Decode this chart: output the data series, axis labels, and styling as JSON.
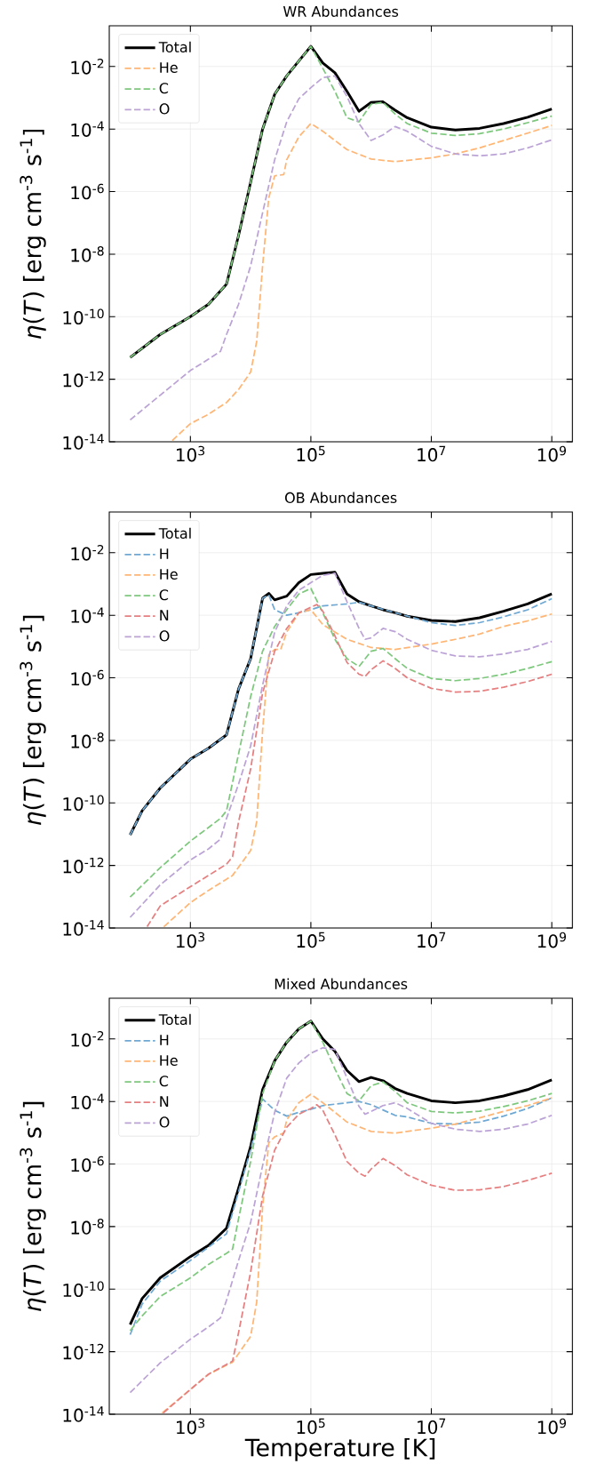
{
  "chart_data": [
    {
      "type": "line",
      "title": "WR Abundances",
      "ylabel": "*η*(*T*) [erg cm$^{-3}$ s$^{-1}$]",
      "log": "xy",
      "xlim": [
        45,
        2200000000.0
      ],
      "ylim": [
        1e-14,
        0.2
      ],
      "xticks": [
        {
          "value": 1000.0,
          "label": "10$^{3}$"
        },
        {
          "value": 100000.0,
          "label": "10$^{5}$"
        },
        {
          "value": 10000000.0,
          "label": "10$^{7}$"
        },
        {
          "value": 1000000000.0,
          "label": "10$^{9}$"
        }
      ],
      "yticks": [
        {
          "value": 1e-14,
          "label": "10$^{-14}$"
        },
        {
          "value": 1e-12,
          "label": "10$^{-12}$"
        },
        {
          "value": 1e-10,
          "label": "10$^{-10}$"
        },
        {
          "value": 1e-08,
          "label": "10$^{-8}$"
        },
        {
          "value": 1e-06,
          "label": "10$^{-6}$"
        },
        {
          "value": 0.0001,
          "label": "10$^{-4}$"
        },
        {
          "value": 0.01,
          "label": "10$^{-2}$"
        }
      ],
      "grid": true,
      "legend": "top left",
      "marker": "none",
      "series": [
        {
          "name": "Total",
          "color": "#000000",
          "line_style": "solid",
          "x": [
            100,
            316,
            1000,
            2000,
            3980,
            6310,
            10000.0,
            15800,
            25100,
            39800,
            63100,
            100000.0,
            158000,
            251000,
            398000,
            631000,
            1000000.0,
            1580000.0,
            2510000.0,
            3980000.0,
            10000000.0,
            25100000.0,
            63100000.0,
            158000000.0,
            398000000.0,
            1000000000.0
          ],
          "values": [
            5e-12,
            2.7e-11,
            1e-10,
            2.5e-10,
            1.1e-09,
            4e-08,
            2e-06,
            0.0001,
            0.0013,
            0.005,
            0.015,
            0.044,
            0.013,
            0.0063,
            0.0016,
            0.00037,
            0.00071,
            0.00074,
            0.0004,
            0.00023,
            0.000115,
            9.3e-05,
            0.000105,
            0.00015,
            0.00024,
            0.00044
          ]
        },
        {
          "name": "He",
          "color": "#ffb574",
          "line_style": "dashed",
          "x": [
            500,
            1000,
            2000,
            3980,
            6310,
            10000.0,
            12600,
            15800,
            20000,
            25100,
            35500,
            39800,
            63100,
            100000.0,
            158000,
            251000,
            398000,
            1000000.0,
            2510000.0,
            10000000.0,
            25100000.0,
            63100000.0,
            158000000.0,
            398000000.0,
            1000000000.0
          ],
          "values": [
            1.1e-14,
            3.8e-14,
            7.6e-14,
            1.8e-13,
            4.7e-13,
            1.7e-12,
            1.6e-11,
            4.2e-09,
            6.3e-07,
            3.2e-06,
            3.5e-06,
            1.05e-05,
            5.6e-05,
            0.00015,
            8.5e-05,
            4.3e-05,
            2.2e-05,
            1.1e-05,
            9.1e-06,
            1.2e-05,
            1.6e-05,
            2.5e-05,
            4.3e-05,
            7.4e-05,
            0.00013
          ]
        },
        {
          "name": "C",
          "color": "#7dc87d",
          "line_style": "dashed",
          "x": [
            100,
            316,
            1000,
            2000,
            3980,
            6310,
            10000.0,
            15800,
            25100,
            39800,
            63100,
            100000.0,
            158000,
            251000,
            398000,
            631000,
            1000000.0,
            1580000.0,
            2510000.0,
            3980000.0,
            10000000.0,
            25100000.0,
            63100000.0,
            158000000.0,
            398000000.0,
            1000000000.0
          ],
          "values": [
            5e-12,
            2.7e-11,
            1e-10,
            2.5e-10,
            1.1e-09,
            4e-08,
            2e-06,
            0.0001,
            0.0013,
            0.005,
            0.015,
            0.044,
            0.0087,
            0.0016,
            0.00023,
            0.00017,
            0.00062,
            0.00071,
            0.0003,
            0.00015,
            7.4e-05,
            6.2e-05,
            7.1e-05,
            0.0001,
            0.00016,
            0.00026
          ]
        },
        {
          "name": "O",
          "color": "#bba3d6",
          "line_style": "dashed",
          "x": [
            100,
            316,
            1000,
            2000,
            3160,
            3980,
            6310,
            10000.0,
            15800,
            25100,
            39800,
            63100,
            100000.0,
            158000,
            251000,
            398000,
            631000,
            1000000.0,
            1580000.0,
            2510000.0,
            3980000.0,
            10000000.0,
            25100000.0,
            63100000.0,
            158000000.0,
            398000000.0,
            1000000000.0
          ],
          "values": [
            5e-14,
            3.1e-13,
            1.9e-12,
            4.4e-12,
            7.8e-12,
            2.7e-11,
            2.5e-10,
            4.2e-09,
            2.1e-07,
            1.05e-05,
            0.00017,
            0.00093,
            0.0021,
            0.0044,
            0.005,
            0.0011,
            0.00015,
            4.3e-05,
            6.5e-05,
            0.00012,
            8.5e-05,
            2.8e-05,
            1.6e-05,
            1.4e-05,
            1.6e-05,
            2.5e-05,
            4.5e-05
          ]
        }
      ]
    },
    {
      "type": "line",
      "title": "OB Abundances",
      "ylabel": "*η*(*T*) [erg cm$^{-3}$ s$^{-1}$]",
      "log": "xy",
      "xlim": [
        45,
        2200000000.0
      ],
      "ylim": [
        1e-14,
        0.2
      ],
      "xticks": [
        {
          "value": 1000.0,
          "label": "10$^{3}$"
        },
        {
          "value": 100000.0,
          "label": "10$^{5}$"
        },
        {
          "value": 10000000.0,
          "label": "10$^{7}$"
        },
        {
          "value": 1000000000.0,
          "label": "10$^{9}$"
        }
      ],
      "yticks": [
        {
          "value": 1e-14,
          "label": "10$^{-14}$"
        },
        {
          "value": 1e-12,
          "label": "10$^{-12}$"
        },
        {
          "value": 1e-10,
          "label": "10$^{-10}$"
        },
        {
          "value": 1e-08,
          "label": "10$^{-8}$"
        },
        {
          "value": 1e-06,
          "label": "10$^{-6}$"
        },
        {
          "value": 0.0001,
          "label": "10$^{-4}$"
        },
        {
          "value": 0.01,
          "label": "10$^{-2}$"
        }
      ],
      "grid": true,
      "legend": "top left",
      "marker": "none",
      "series": [
        {
          "name": "Total",
          "color": "#000000",
          "line_style": "solid",
          "x": [
            100,
            158,
            316,
            1000,
            2000,
            3980,
            6310,
            10000.0,
            15800,
            20000,
            25100,
            39800,
            63100,
            100000.0,
            158000,
            251000,
            398000,
            631000,
            1000000.0,
            1580000.0,
            2510000.0,
            3980000.0,
            10000000.0,
            25100000.0,
            63100000.0,
            158000000.0,
            398000000.0,
            1000000000.0
          ],
          "values": [
            9.5e-12,
            5.6e-11,
            3e-10,
            2.5e-09,
            5.6e-09,
            1.5e-08,
            4.4e-07,
            4.1e-06,
            0.00035,
            0.0005,
            0.00031,
            0.00041,
            0.0011,
            0.002,
            0.0022,
            0.0024,
            0.00048,
            0.00027,
            0.0002,
            0.00015,
            0.00012,
            9.3e-05,
            6.8e-05,
            6.3e-05,
            8.3e-05,
            0.000135,
            0.00023,
            0.00048
          ]
        },
        {
          "name": "H",
          "color": "#6fa8d2",
          "line_style": "dashed",
          "x": [
            100,
            158,
            316,
            1000,
            2000,
            3980,
            6310,
            10000.0,
            15800,
            20000,
            25100,
            39800,
            63100,
            100000.0,
            158000,
            398000,
            631000,
            1000000.0,
            2510000.0,
            10000000.0,
            25100000.0,
            63100000.0,
            158000000.0,
            398000000.0,
            1000000000.0
          ],
          "values": [
            9.5e-12,
            5.6e-11,
            3e-10,
            2.5e-09,
            5.6e-09,
            1.5e-08,
            4.4e-07,
            4.1e-06,
            0.00035,
            0.00045,
            0.00015,
            0.0001,
            0.00012,
            0.00015,
            0.0002,
            0.00023,
            0.00026,
            0.0002,
            0.00012,
            5.8e-05,
            4.7e-05,
            5.8e-05,
            8.9e-05,
            0.00015,
            0.00034
          ]
        },
        {
          "name": "He",
          "color": "#ffb574",
          "line_style": "dashed",
          "x": [
            363,
            1000,
            2000,
            5010,
            10000.0,
            12600,
            15800,
            20000,
            25100,
            31600,
            39800,
            63100,
            100000.0,
            158000,
            251000,
            398000,
            1000000.0,
            2510000.0,
            10000000.0,
            25100000.0,
            63100000.0,
            158000000.0,
            398000000.0,
            1000000000.0
          ],
          "values": [
            1.1e-14,
            6.5e-14,
            1.6e-13,
            4.8e-13,
            3e-12,
            2.5e-11,
            2e-08,
            5.4e-06,
            8.1e-06,
            8.1e-06,
            2.9e-05,
            0.00012,
            0.00015,
            5e-05,
            2.9e-05,
            1.7e-05,
            9.3e-06,
            8.1e-06,
            1.2e-05,
            1.7e-05,
            2.5e-05,
            4.4e-05,
            6.6e-05,
            0.00011
          ]
        },
        {
          "name": "C",
          "color": "#7dc87d",
          "line_style": "dashed",
          "x": [
            100,
            316,
            1000,
            3160,
            3980,
            6310,
            10000.0,
            15800,
            25100,
            39800,
            63100,
            100000.0,
            158000,
            251000,
            398000,
            631000,
            1000000.0,
            1580000.0,
            2510000.0,
            3980000.0,
            10000000.0,
            25100000.0,
            63100000.0,
            158000000.0,
            398000000.0,
            1000000000.0
          ],
          "values": [
            9.8e-14,
            8.5e-13,
            6e-12,
            3.2e-11,
            5.6e-11,
            3.7e-09,
            2.5e-07,
            7.1e-06,
            4.4e-05,
            0.00015,
            0.00048,
            0.00072,
            0.00012,
            1.7e-05,
            4.1e-06,
            2.3e-06,
            7.1e-06,
            8.7e-06,
            4.1e-06,
            2e-06,
            9.5e-07,
            8.1e-07,
            9.5e-07,
            1.3e-06,
            2e-06,
            3.3e-06
          ]
        },
        {
          "name": "N",
          "color": "#e57f80",
          "line_style": "dashed",
          "x": [
            191,
            316,
            1000,
            2000,
            3980,
            5010,
            6310,
            10000.0,
            15800,
            25100,
            39800,
            63100,
            100000.0,
            126000,
            158000,
            251000,
            398000,
            631000,
            794000,
            1000000.0,
            1580000.0,
            2510000.0,
            3980000.0,
            10000000.0,
            25100000.0,
            63100000.0,
            158000000.0,
            398000000.0,
            1000000000.0
          ],
          "values": [
            1.1e-14,
            5.1e-14,
            2.1e-13,
            4.8e-13,
            1.1e-12,
            1.9e-12,
            2.5e-11,
            1.2e-09,
            3.3e-07,
            7.1e-06,
            3.8e-05,
            0.00012,
            0.00018,
            0.00022,
            0.000135,
            2.2e-05,
            3.1e-06,
            1.3e-06,
            1.1e-06,
            1.8e-06,
            3.5e-06,
            2e-06,
            1e-06,
            4.6e-07,
            3.5e-07,
            3.7e-07,
            5e-07,
            7.6e-07,
            1.3e-06
          ]
        },
        {
          "name": "O",
          "color": "#bba3d6",
          "line_style": "dashed",
          "x": [
            100,
            316,
            1000,
            2000,
            3160,
            3980,
            6310,
            10000.0,
            15800,
            25100,
            39800,
            63100,
            100000.0,
            158000,
            251000,
            398000,
            631000,
            794000,
            1000000.0,
            1580000.0,
            2510000.0,
            3980000.0,
            10000000.0,
            25100000.0,
            63100000.0,
            158000000.0,
            398000000.0,
            1000000000.0
          ],
          "values": [
            2.2e-14,
            2.4e-13,
            1.5e-12,
            3.4e-12,
            6.9e-12,
            3.2e-11,
            4e-10,
            6.6e-09,
            5.8e-07,
            2.9e-05,
            0.0002,
            0.00063,
            0.0011,
            0.0019,
            0.0022,
            0.00027,
            3.8e-05,
            1.7e-05,
            1.9e-05,
            3.8e-05,
            3e-05,
            1.7e-05,
            7.6e-06,
            5e-06,
            4.7e-06,
            5.8e-06,
            8.1e-06,
            1.45e-05
          ]
        }
      ]
    },
    {
      "type": "line",
      "title": "Mixed Abundances",
      "xlabel": "Temperature [K]",
      "ylabel": "*η*(*T*) [erg cm$^{-3}$ s$^{-1}$]",
      "log": "xy",
      "xlim": [
        45,
        2200000000.0
      ],
      "ylim": [
        1e-14,
        0.2
      ],
      "xticks": [
        {
          "value": 1000.0,
          "label": "10$^{3}$"
        },
        {
          "value": 100000.0,
          "label": "10$^{5}$"
        },
        {
          "value": 10000000.0,
          "label": "10$^{7}$"
        },
        {
          "value": 1000000000.0,
          "label": "10$^{9}$"
        }
      ],
      "yticks": [
        {
          "value": 1e-14,
          "label": "10$^{-14}$"
        },
        {
          "value": 1e-12,
          "label": "10$^{-12}$"
        },
        {
          "value": 1e-10,
          "label": "10$^{-10}$"
        },
        {
          "value": 1e-08,
          "label": "10$^{-8}$"
        },
        {
          "value": 1e-06,
          "label": "10$^{-6}$"
        },
        {
          "value": 0.0001,
          "label": "10$^{-4}$"
        },
        {
          "value": 0.01,
          "label": "10$^{-2}$"
        }
      ],
      "grid": true,
      "legend": "top left",
      "marker": "none",
      "series": [
        {
          "name": "Total",
          "color": "#000000",
          "line_style": "solid",
          "x": [
            100,
            158,
            316,
            1000,
            2000,
            3980,
            6310,
            10000.0,
            15800,
            25100,
            39800,
            63100,
            100000.0,
            158000,
            251000,
            398000,
            631000,
            1000000.0,
            1580000.0,
            2510000.0,
            3980000.0,
            10000000.0,
            25100000.0,
            63100000.0,
            158000000.0,
            398000000.0,
            1000000000.0
          ],
          "values": [
            7.4e-12,
            5e-11,
            2.3e-10,
            1.1e-09,
            2.5e-09,
            8.9e-09,
            1.7e-07,
            3.6e-06,
            0.00024,
            0.002,
            0.0079,
            0.021,
            0.037,
            0.01,
            0.004,
            0.00098,
            0.00043,
            0.00059,
            0.00046,
            0.00026,
            0.00018,
            0.000105,
            9.1e-05,
            0.000105,
            0.00015,
            0.00024,
            0.00049
          ]
        },
        {
          "name": "H",
          "color": "#6fa8d2",
          "line_style": "dashed",
          "x": [
            100,
            158,
            316,
            1000,
            2000,
            3980,
            6310,
            10000.0,
            15800,
            20000,
            25100,
            39800,
            63100,
            100000.0,
            158000,
            398000,
            631000,
            1000000.0,
            2510000.0,
            3980000.0,
            10000000.0,
            25100000.0,
            63100000.0,
            158000000.0,
            398000000.0,
            1000000000.0
          ],
          "values": [
            3.5e-12,
            3.3e-11,
            1.8e-10,
            8.3e-10,
            2.2e-09,
            5.9e-09,
            1.3e-07,
            2.8e-06,
            0.00012,
            7.9e-05,
            5.2e-05,
            3.4e-05,
            4.5e-05,
            5.6e-05,
            7.4e-05,
            9.1e-05,
            0.0001,
            7.9e-05,
            3.6e-05,
            3.2e-05,
            2e-05,
            1.9e-05,
            2.2e-05,
            3.4e-05,
            6e-05,
            0.00013
          ]
        },
        {
          "name": "He",
          "color": "#ffb574",
          "line_style": "dashed",
          "x": [
            339,
            1000,
            2000,
            5010,
            10000.0,
            12600,
            15800,
            20000,
            25100,
            35500,
            39800,
            63100,
            100000.0,
            158000,
            251000,
            398000,
            1000000.0,
            2510000.0,
            10000000.0,
            25100000.0,
            63100000.0,
            158000000.0,
            398000000.0,
            1000000000.0
          ],
          "values": [
            1.1e-14,
            6.2e-14,
            1.9e-13,
            4.6e-13,
            3.1e-12,
            3.8e-11,
            4.2e-08,
            4.8e-06,
            7.4e-06,
            9.8e-06,
            2.6e-05,
            9.1e-05,
            0.00017,
            9.1e-05,
            4.5e-05,
            2.2e-05,
            1.1e-05,
            9.8e-06,
            1.4e-05,
            1.9e-05,
            3e-05,
            4.8e-05,
            7.4e-05,
            0.00013
          ]
        },
        {
          "name": "C",
          "color": "#7dc87d",
          "line_style": "dashed",
          "x": [
            100,
            158,
            316,
            1000,
            2000,
            3980,
            5010,
            6310,
            10000.0,
            15800,
            25100,
            39800,
            63100,
            100000.0,
            158000,
            251000,
            398000,
            631000,
            1000000.0,
            1580000.0,
            2510000.0,
            3980000.0,
            10000000.0,
            25100000.0,
            63100000.0,
            158000000.0,
            398000000.0,
            1000000000.0
          ],
          "values": [
            4.7e-12,
            1.4e-11,
            5.8e-11,
            2.3e-10,
            6.2e-10,
            1.4e-09,
            1.9e-09,
            1.8e-08,
            1.2e-06,
            0.00018,
            0.002,
            0.0079,
            0.021,
            0.037,
            0.0079,
            0.0011,
            0.00018,
            0.000105,
            0.00032,
            0.00042,
            0.00021,
            9.1e-05,
            4.8e-05,
            4.3e-05,
            4.9e-05,
            6.9e-05,
            0.000105,
            0.00018
          ]
        },
        {
          "name": "N",
          "color": "#e57f80",
          "line_style": "dashed",
          "x": [
            355,
            1000,
            2000,
            5010,
            6310,
            10000.0,
            15800,
            25100,
            39800,
            63100,
            100000.0,
            126000,
            158000,
            251000,
            398000,
            631000,
            794000,
            1000000.0,
            1580000.0,
            2510000.0,
            3980000.0,
            10000000.0,
            25100000.0,
            63100000.0,
            158000000.0,
            398000000.0,
            1000000000.0
          ],
          "values": [
            1.1e-14,
            6.2e-14,
            1.9e-13,
            5e-13,
            4.1e-12,
            3.5e-10,
            9.5e-08,
            2.8e-06,
            1.5e-05,
            3.9e-05,
            6e-05,
            7.9e-05,
            5.2e-05,
            8.5e-06,
            1.2e-06,
            5.1e-07,
            4.1e-07,
            6.9e-07,
            1.5e-06,
            8.9e-07,
            4.5e-07,
            2.1e-07,
            1.45e-07,
            1.5e-07,
            1.9e-07,
            3e-07,
            5.1e-07
          ]
        },
        {
          "name": "O",
          "color": "#bba3d6",
          "line_style": "dashed",
          "x": [
            100,
            316,
            1000,
            2000,
            3160,
            3980,
            6310,
            10000.0,
            15800,
            25100,
            39800,
            63100,
            100000.0,
            158000,
            251000,
            398000,
            631000,
            794000,
            1000000.0,
            1580000.0,
            2510000.0,
            3980000.0,
            10000000.0,
            25100000.0,
            63100000.0,
            158000000.0,
            398000000.0,
            1000000000.0
          ],
          "values": [
            4.9e-14,
            4.4e-13,
            2.5e-12,
            6.2e-12,
            1.2e-11,
            4.4e-11,
            8.3e-10,
            1.35e-08,
            8.9e-07,
            4.5e-05,
            0.00056,
            0.0017,
            0.0035,
            0.0052,
            0.0046,
            0.00056,
            6.9e-05,
            3.9e-05,
            4.8e-05,
            7.4e-05,
            9.1e-05,
            6e-05,
            2e-05,
            1.3e-05,
            1.1e-05,
            1.3e-05,
            1.9e-05,
            3.6e-05
          ]
        }
      ]
    }
  ]
}
